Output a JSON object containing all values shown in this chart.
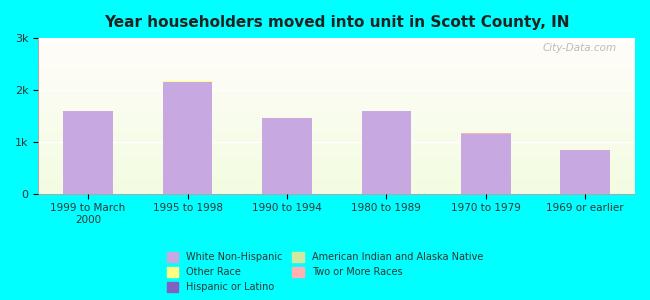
{
  "title": "Year householders moved into unit in Scott County, IN",
  "background_color": "#00FFFF",
  "categories": [
    "1999 to March\n2000",
    "1995 to 1998",
    "1990 to 1994",
    "1980 to 1989",
    "1970 to 1979",
    "1969 or earlier"
  ],
  "white_non_hispanic": [
    1600,
    2150,
    1450,
    1600,
    1150,
    850
  ],
  "other_race": [
    0,
    15,
    0,
    0,
    0,
    0
  ],
  "hispanic_or_latino": [
    0,
    0,
    0,
    0,
    0,
    0
  ],
  "american_indian": [
    0,
    0,
    0,
    0,
    0,
    0
  ],
  "two_or_more": [
    0,
    0,
    0,
    0,
    15,
    0
  ],
  "bar_width": 0.5,
  "ylim": [
    0,
    3000
  ],
  "yticks": [
    0,
    1000,
    2000,
    3000
  ],
  "ytick_labels": [
    "0",
    "1k",
    "2k",
    "3k"
  ],
  "colors": {
    "white_non_hispanic": "#c8a8e0",
    "other_race": "#ffff80",
    "hispanic_or_latino": "#8060c0",
    "american_indian": "#d0e8a0",
    "two_or_more": "#ffb0b0"
  },
  "legend": [
    {
      "label": "White Non-Hispanic",
      "color": "#c8a8e0"
    },
    {
      "label": "Other Race",
      "color": "#ffff80"
    },
    {
      "label": "Hispanic or Latino",
      "color": "#8060c0"
    },
    {
      "label": "American Indian and Alaska Native",
      "color": "#d0e8a0"
    },
    {
      "label": "Two or More Races",
      "color": "#ffb0b0"
    }
  ],
  "watermark": "City-Data.com"
}
